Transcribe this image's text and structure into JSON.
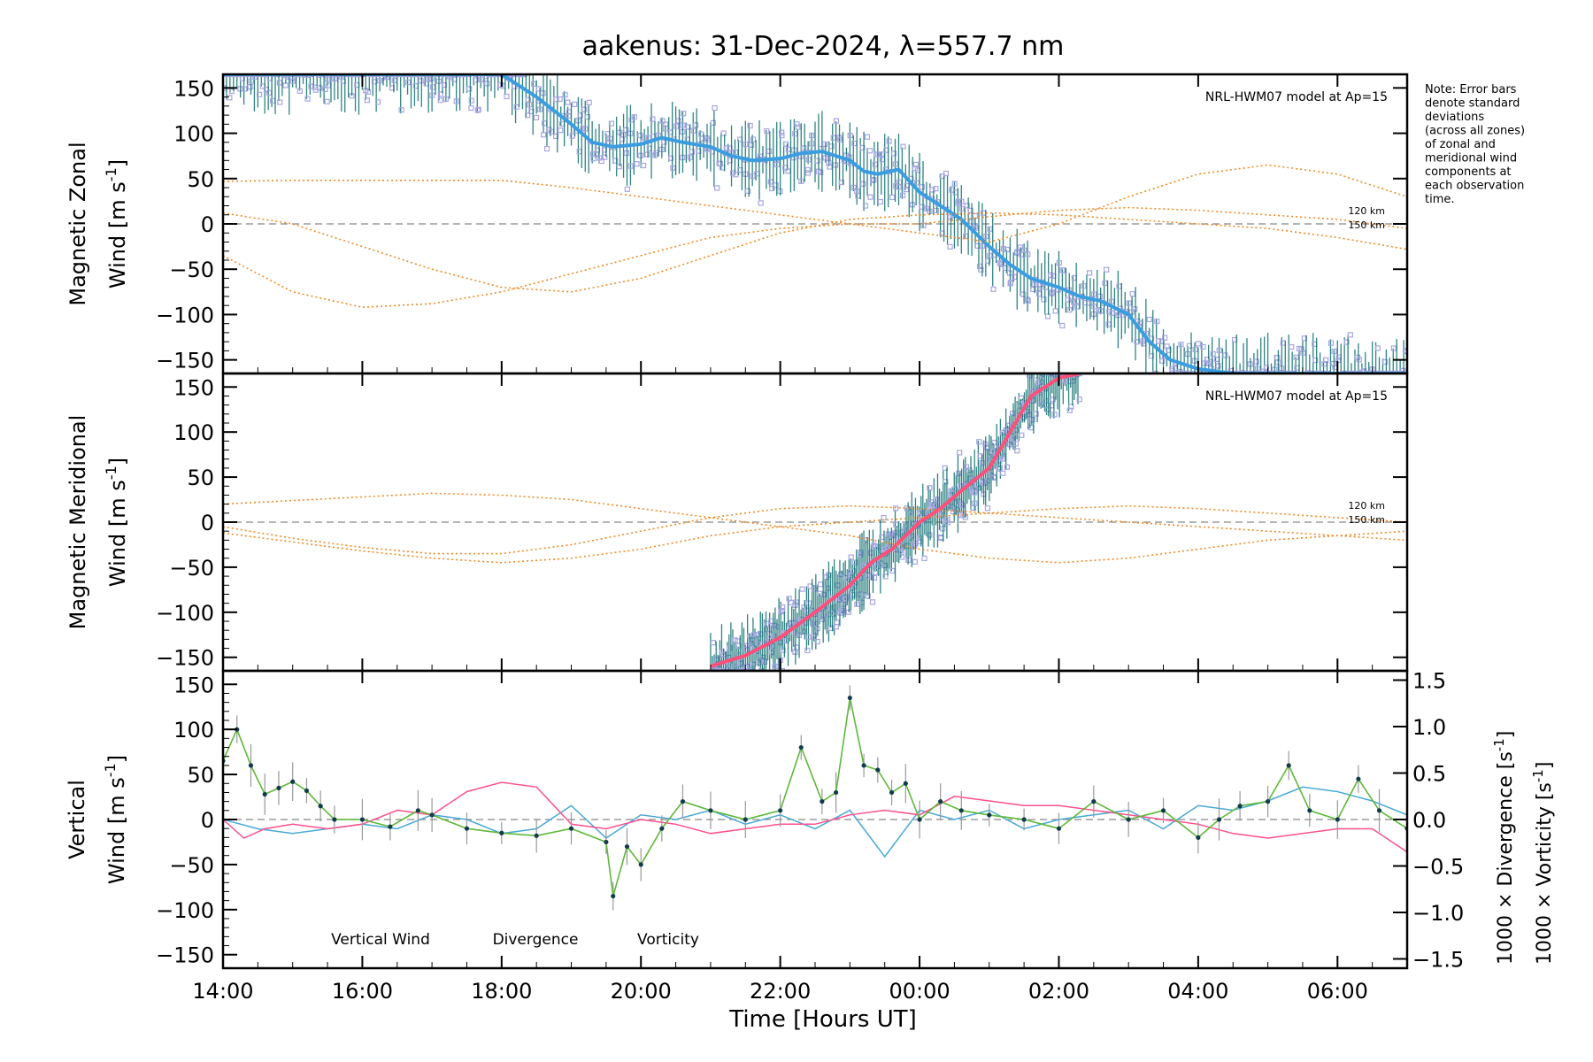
{
  "title": "aakenus: 31-Dec-2024, λ=557.7 nm",
  "note_lines": [
    "Note: Error bars",
    "denote standard",
    "deviations",
    "(across all zones)",
    "of zonal and",
    "meridional wind",
    "components at",
    "each observation",
    "time."
  ],
  "x_axis": {
    "label": "Time [Hours UT]",
    "tick_labels": [
      "14:00",
      "16:00",
      "18:00",
      "20:00",
      "22:00",
      "00:00",
      "02:00",
      "04:00",
      "06:00"
    ],
    "tick_hours": [
      14,
      16,
      18,
      20,
      22,
      24,
      26,
      28,
      30
    ],
    "range_hours": [
      14,
      31
    ]
  },
  "colors": {
    "model": "#f08a24",
    "zonal_mean": "#3a9de0",
    "zonal_err": "#0b6e6e",
    "meridional_mean": "#ff4f7a",
    "vertical": "#5fb83a",
    "divergence": "#49a9d6",
    "vorticity": "#ff4f8f",
    "samples": "#a7a6e3",
    "vertical_points": "#123c4d"
  },
  "chart_data": [
    {
      "type": "line",
      "panel": "zonal",
      "ylabel_line1": "Magnetic Zonal",
      "ylabel_line2": "Wind [m s",
      "ylabel_exp": "-1",
      "ylabel_close": "]",
      "ylim": [
        -165,
        165
      ],
      "yticks": [
        150,
        100,
        50,
        0,
        -50,
        -100,
        -150
      ],
      "model_label": "NRL-HWM07 model at Ap=15",
      "height_labels": [
        "120 km",
        "150 km"
      ],
      "mean_series": {
        "x": [
          14,
          15,
          16,
          17,
          17.5,
          18,
          18.5,
          19,
          19.3,
          19.6,
          20,
          20.3,
          20.6,
          21,
          21.3,
          21.6,
          22,
          22.3,
          22.6,
          23,
          23.2,
          23.4,
          23.7,
          24,
          24.3,
          24.6,
          25,
          25.3,
          25.6,
          26,
          26.3,
          26.6,
          27,
          27.3,
          27.6,
          28,
          28.5,
          29,
          29.5,
          30,
          30.5,
          31
        ],
        "y": [
          165,
          165,
          165,
          165,
          165,
          165,
          140,
          110,
          90,
          85,
          88,
          95,
          90,
          85,
          75,
          70,
          72,
          78,
          80,
          70,
          58,
          55,
          60,
          35,
          20,
          5,
          -25,
          -45,
          -60,
          -70,
          -80,
          -85,
          -100,
          -130,
          -150,
          -160,
          -165,
          -165,
          -165,
          -165,
          -165,
          -165
        ]
      },
      "model_curves": [
        {
          "x": [
            14,
            15,
            16,
            17,
            18,
            19,
            20,
            21,
            22,
            23,
            24,
            25,
            26,
            27,
            28,
            29,
            30,
            31
          ],
          "y": [
            47,
            48,
            48,
            48,
            48,
            40,
            30,
            20,
            10,
            0,
            -10,
            -20,
            0,
            30,
            55,
            65,
            55,
            30
          ]
        },
        {
          "x": [
            14,
            15,
            16,
            17,
            18,
            19,
            20,
            21,
            22,
            23,
            24,
            25,
            26,
            27,
            28,
            29,
            30,
            31
          ],
          "y": [
            -35,
            -75,
            -92,
            -88,
            -75,
            -55,
            -35,
            -15,
            -5,
            0,
            0,
            8,
            15,
            18,
            15,
            10,
            5,
            -5
          ]
        },
        {
          "x": [
            14,
            15,
            16,
            17,
            18,
            19,
            20,
            21,
            22,
            23,
            24,
            25,
            26,
            27,
            28,
            29,
            30,
            31
          ],
          "y": [
            12,
            0,
            -25,
            -50,
            -70,
            -75,
            -60,
            -35,
            -10,
            5,
            10,
            12,
            10,
            5,
            0,
            -5,
            -15,
            -28
          ]
        }
      ]
    },
    {
      "type": "line",
      "panel": "meridional",
      "ylabel_line1": "Magnetic Meridional",
      "ylabel_line2": "Wind [m s",
      "ylabel_exp": "-1",
      "ylabel_close": "]",
      "ylim": [
        -165,
        165
      ],
      "yticks": [
        150,
        100,
        50,
        0,
        -50,
        -100,
        -150
      ],
      "model_label": "NRL-HWM07 model at Ap=15",
      "height_labels": [
        "120 km",
        "150 km"
      ],
      "mean_series": {
        "x": [
          21,
          21.5,
          22,
          22.5,
          23,
          23.3,
          23.6,
          24,
          24.3,
          24.6,
          25,
          25.3,
          25.6,
          26,
          26.3
        ],
        "y": [
          -160,
          -148,
          -128,
          -100,
          -70,
          -45,
          -30,
          0,
          15,
          35,
          60,
          100,
          140,
          160,
          165
        ]
      },
      "model_curves": [
        {
          "x": [
            14,
            15,
            16,
            17,
            18,
            19,
            20,
            21,
            22,
            23,
            24,
            25,
            26,
            27,
            28,
            29,
            30,
            31
          ],
          "y": [
            20,
            24,
            28,
            32,
            30,
            25,
            15,
            5,
            -5,
            -15,
            -30,
            -40,
            -45,
            -40,
            -30,
            -20,
            -15,
            -10
          ]
        },
        {
          "x": [
            14,
            15,
            16,
            17,
            18,
            19,
            20,
            21,
            22,
            23,
            24,
            25,
            26,
            27,
            28,
            29,
            30,
            31
          ],
          "y": [
            -5,
            -18,
            -28,
            -35,
            -35,
            -25,
            -10,
            5,
            15,
            18,
            15,
            10,
            5,
            0,
            -5,
            -10,
            -15,
            -20
          ]
        },
        {
          "x": [
            14,
            15,
            16,
            17,
            18,
            19,
            20,
            21,
            22,
            23,
            24,
            25,
            26,
            27,
            28,
            29,
            30,
            31
          ],
          "y": [
            -12,
            -22,
            -32,
            -40,
            -45,
            -40,
            -30,
            -15,
            -5,
            0,
            5,
            10,
            15,
            18,
            15,
            10,
            5,
            0
          ]
        }
      ]
    },
    {
      "type": "line",
      "panel": "vertical",
      "ylabel_line1": "Vertical",
      "ylabel_line2": "Wind [m s",
      "ylabel_exp": "-1",
      "ylabel_close": "]",
      "ylim": [
        -165,
        165
      ],
      "yticks": [
        150,
        100,
        50,
        0,
        -50,
        -100,
        -150
      ],
      "y2lim": [
        -1.6,
        1.6
      ],
      "y2ticks": [
        1.5,
        1.0,
        0.5,
        0.0,
        -0.5,
        -1.0,
        -1.5
      ],
      "y2tick_labels": [
        "1.5",
        "1.0",
        "0.5",
        "0.0",
        "−0.5",
        "−1.0",
        "−1.5"
      ],
      "y2label_div": "1000 × Divergence [s",
      "y2label_vort": "1000 × Vorticity [s",
      "y2label_exp": "-1",
      "y2label_close": "]",
      "legend": [
        "Vertical Wind",
        "Divergence",
        "Vorticity"
      ],
      "vertical_series": {
        "x": [
          14,
          14.2,
          14.4,
          14.6,
          14.8,
          15,
          15.2,
          15.4,
          15.6,
          16,
          16.4,
          16.8,
          17,
          17.5,
          18,
          18.5,
          19,
          19.5,
          19.6,
          19.8,
          20,
          20.3,
          20.6,
          21,
          21.5,
          22,
          22.3,
          22.6,
          22.8,
          23,
          23.2,
          23.4,
          23.6,
          23.8,
          24,
          24.3,
          24.6,
          25,
          25.5,
          26,
          26.5,
          27,
          27.5,
          28,
          28.3,
          28.6,
          29,
          29.3,
          29.6,
          30,
          30.3,
          30.6,
          31
        ],
        "y": [
          65,
          100,
          60,
          28,
          35,
          42,
          32,
          15,
          0,
          0,
          -8,
          10,
          5,
          -10,
          -15,
          -18,
          -10,
          -25,
          -85,
          -30,
          -50,
          -10,
          20,
          10,
          0,
          10,
          80,
          20,
          30,
          135,
          60,
          55,
          30,
          40,
          0,
          20,
          10,
          5,
          0,
          -10,
          20,
          0,
          10,
          -20,
          0,
          15,
          20,
          60,
          10,
          0,
          45,
          10,
          -10
        ]
      },
      "divergence_series": {
        "x": [
          14,
          14.5,
          15,
          15.5,
          16,
          16.5,
          17,
          17.5,
          18,
          18.5,
          19,
          19.5,
          20,
          20.5,
          21,
          21.5,
          22,
          22.5,
          23,
          23.5,
          24,
          24.5,
          25,
          25.5,
          26,
          26.5,
          27,
          27.5,
          28,
          28.5,
          29,
          29.5,
          30,
          30.5,
          31
        ],
        "y": [
          0,
          -0.1,
          -0.15,
          -0.1,
          -0.05,
          -0.1,
          0.05,
          0.0,
          -0.15,
          -0.1,
          0.15,
          -0.2,
          0.05,
          0.0,
          0.1,
          -0.05,
          0.05,
          -0.1,
          0.1,
          -0.4,
          0.1,
          0.0,
          0.1,
          -0.1,
          0.0,
          0.05,
          0.1,
          -0.1,
          0.15,
          0.1,
          0.2,
          0.35,
          0.3,
          0.2,
          0.05
        ]
      },
      "vorticity_series": {
        "x": [
          14,
          14.3,
          14.6,
          15,
          15.5,
          16,
          16.5,
          17,
          17.5,
          18,
          18.5,
          19,
          19.5,
          20,
          20.5,
          21,
          21.5,
          22,
          22.5,
          23,
          23.5,
          24,
          24.5,
          25,
          25.5,
          26,
          26.5,
          27,
          27.5,
          28,
          28.5,
          29,
          29.5,
          30,
          30.5,
          31
        ],
        "y": [
          0.0,
          -0.2,
          -0.1,
          -0.05,
          -0.1,
          -0.05,
          0.1,
          0.05,
          0.3,
          0.4,
          0.35,
          -0.05,
          -0.1,
          0.0,
          -0.05,
          -0.15,
          -0.1,
          -0.05,
          -0.05,
          0.05,
          0.1,
          0.05,
          0.25,
          0.2,
          0.15,
          0.15,
          0.1,
          0.05,
          0.0,
          -0.05,
          -0.15,
          -0.2,
          -0.15,
          -0.1,
          -0.1,
          -0.35
        ]
      }
    }
  ]
}
